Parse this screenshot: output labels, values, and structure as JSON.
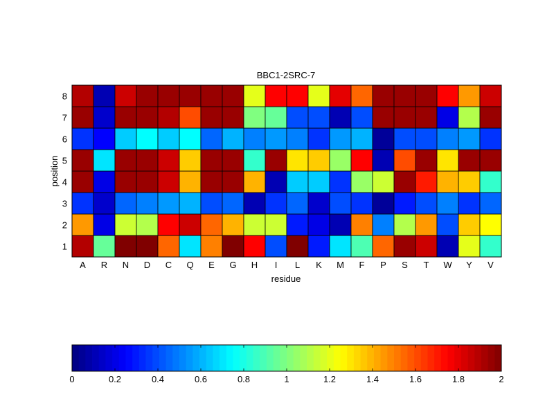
{
  "chart_data": {
    "type": "heatmap",
    "title": "BBC1-2SRC-7",
    "xlabel": "residue",
    "ylabel": "position",
    "x_categories": [
      "A",
      "R",
      "N",
      "D",
      "C",
      "Q",
      "E",
      "G",
      "H",
      "I",
      "L",
      "K",
      "M",
      "F",
      "P",
      "S",
      "T",
      "W",
      "Y",
      "V"
    ],
    "y_categories": [
      "1",
      "2",
      "3",
      "4",
      "5",
      "6",
      "7",
      "8"
    ],
    "colorbar": {
      "range": [
        0,
        2
      ],
      "ticks": [
        "0",
        "0.2",
        "0.4",
        "0.6",
        "0.8",
        "1",
        "1.2",
        "1.4",
        "1.6",
        "1.8",
        "2"
      ],
      "colormap": "jet"
    },
    "values": [
      [
        1.9,
        0.95,
        2.0,
        2.0,
        1.55,
        0.7,
        1.5,
        2.0,
        1.75,
        0.4,
        2.0,
        0.3,
        0.7,
        0.9,
        1.55,
        1.95,
        1.85,
        0.1,
        1.2,
        0.85
      ],
      [
        1.45,
        0.2,
        1.15,
        1.1,
        1.75,
        1.85,
        1.55,
        1.4,
        1.15,
        1.15,
        0.3,
        0.2,
        0.1,
        1.5,
        0.5,
        1.1,
        1.45,
        0.4,
        1.35,
        1.25
      ],
      [
        0.35,
        0.15,
        0.45,
        0.5,
        0.55,
        0.6,
        0.4,
        0.45,
        0.1,
        0.35,
        0.45,
        0.15,
        0.4,
        0.35,
        0.05,
        0.3,
        0.4,
        0.5,
        0.35,
        0.45
      ],
      [
        1.95,
        0.2,
        1.95,
        1.95,
        1.85,
        1.4,
        1.95,
        1.95,
        1.4,
        0.1,
        0.65,
        0.65,
        0.35,
        1.05,
        1.15,
        1.95,
        1.7,
        1.4,
        1.35,
        0.85
      ],
      [
        1.95,
        0.7,
        1.95,
        1.95,
        1.85,
        1.35,
        1.95,
        1.95,
        0.85,
        1.95,
        1.3,
        1.35,
        1.05,
        1.75,
        0.1,
        1.6,
        1.95,
        1.3,
        1.95,
        1.95
      ],
      [
        0.35,
        0.25,
        0.65,
        0.75,
        0.65,
        0.75,
        0.45,
        0.6,
        0.5,
        0.55,
        0.5,
        0.35,
        0.55,
        0.6,
        0.05,
        0.4,
        0.4,
        0.5,
        0.55,
        0.35
      ],
      [
        1.95,
        0.15,
        1.95,
        1.95,
        1.9,
        1.6,
        1.95,
        1.95,
        1.0,
        0.95,
        0.4,
        0.4,
        0.1,
        0.4,
        1.95,
        1.95,
        1.95,
        0.2,
        1.1,
        1.95
      ],
      [
        1.9,
        0.1,
        1.85,
        1.95,
        1.95,
        1.95,
        1.95,
        1.95,
        1.2,
        1.75,
        1.75,
        1.2,
        1.8,
        1.55,
        1.95,
        1.95,
        1.95,
        1.75,
        1.45,
        1.85
      ]
    ],
    "grid": true
  }
}
